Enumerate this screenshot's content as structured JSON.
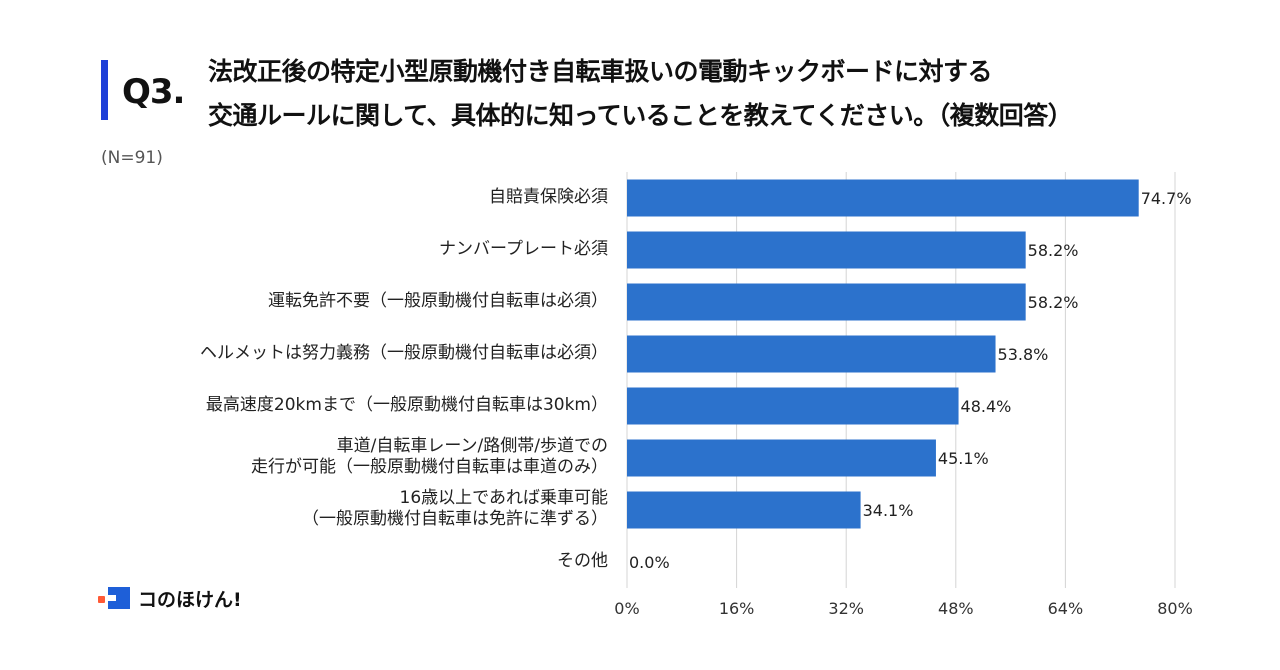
{
  "question": {
    "number": "Q3.",
    "line1": "法改正後の特定小型原動機付き自転車扱いの電動キックボードに対する",
    "line2": "交通ルールに関して、具体的に知っていることを教えてください。（複数回答）"
  },
  "sample_size": "(N=91)",
  "logo_text": "コのほけん!",
  "colors": {
    "accent": "#1e3fd8",
    "bar": "#2c72cc",
    "grid": "#d4d4d4"
  },
  "chart_data": {
    "type": "bar",
    "orientation": "horizontal",
    "categories": [
      [
        "自賠責保険必須"
      ],
      [
        "ナンバープレート必須"
      ],
      [
        "運転免許不要（一般原動機付自転車は必須）"
      ],
      [
        "ヘルメットは努力義務（一般原動機付自転車は必須）"
      ],
      [
        "最高速度20kmまで（一般原動機付自転車は30km）"
      ],
      [
        "車道/自転車レーン/路側帯/歩道での",
        "走行が可能（一般原動機付自転車は車道のみ）"
      ],
      [
        "16歳以上であれば乗車可能",
        "（一般原動機付自転車は免許に準ずる）"
      ],
      [
        "その他"
      ]
    ],
    "values": [
      74.7,
      58.2,
      58.2,
      53.8,
      48.4,
      45.1,
      34.1,
      0.0
    ],
    "value_labels": [
      "74.7%",
      "58.2%",
      "58.2%",
      "53.8%",
      "48.4%",
      "45.1%",
      "34.1%",
      "0.0%"
    ],
    "xlim": [
      0,
      80
    ],
    "xticks": [
      "0%",
      "16%",
      "32%",
      "48%",
      "64%",
      "80%"
    ],
    "xtick_values": [
      0,
      16,
      32,
      48,
      64,
      80
    ],
    "grid": "vertical"
  }
}
